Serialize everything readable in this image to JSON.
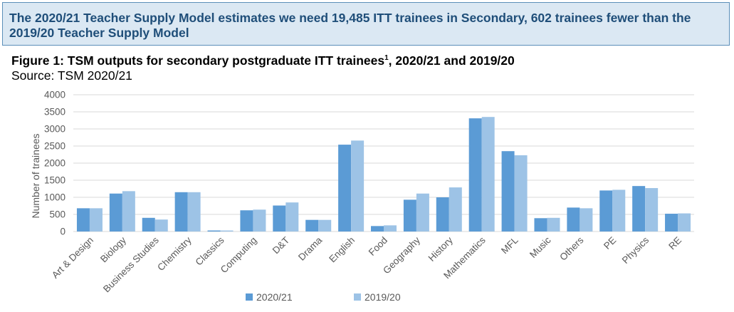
{
  "banner": {
    "text": "The 2020/21 Teacher Supply Model estimates we need 19,485 ITT trainees in Secondary, 602 trainees fewer than the 2019/20 Teacher Supply Model"
  },
  "figure": {
    "title_main": "Figure 1: TSM outputs for secondary postgraduate ITT trainees",
    "title_sup": "1",
    "title_tail": ", 2020/21 and 2019/20",
    "source": "Source: TSM 2020/21"
  },
  "colors": {
    "series_2020": "#5b9bd5",
    "series_2019": "#9dc3e6",
    "grid": "#d9d9d9",
    "axis_text": "#595959",
    "banner_text": "#1f4e79"
  },
  "chart_data": {
    "type": "bar",
    "ylabel": "Number of trainees",
    "ylim": [
      0,
      4000
    ],
    "yticks": [
      0,
      500,
      1000,
      1500,
      2000,
      2500,
      3000,
      3500,
      4000
    ],
    "grid": true,
    "legend_position": "bottom",
    "categories": [
      "Art & Design",
      "Biology",
      "Business Studies",
      "Chemistry",
      "Classics",
      "Computing",
      "D&T",
      "Drama",
      "English",
      "Food",
      "Geography",
      "History",
      "Mathematics",
      "MFL",
      "Music",
      "Others",
      "PE",
      "Physics",
      "RE"
    ],
    "series": [
      {
        "name": "2020/21",
        "values": [
          680,
          1110,
          400,
          1150,
          30,
          620,
          760,
          340,
          2540,
          160,
          930,
          1000,
          3310,
          2350,
          390,
          700,
          1200,
          1330,
          520
        ]
      },
      {
        "name": "2019/20",
        "values": [
          680,
          1180,
          350,
          1150,
          30,
          640,
          850,
          340,
          2660,
          180,
          1110,
          1290,
          3350,
          2230,
          400,
          680,
          1220,
          1270,
          530
        ]
      }
    ]
  }
}
